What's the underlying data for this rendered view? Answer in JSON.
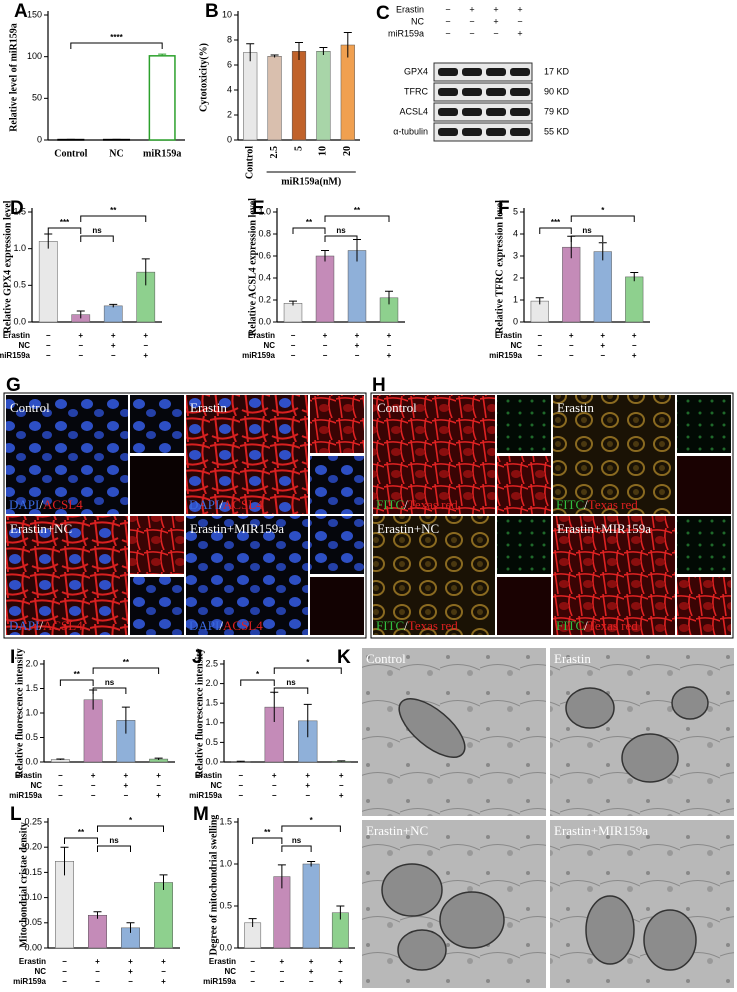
{
  "chart_data": [
    {
      "type": "bar",
      "panel": "A",
      "ylabel": "Relative level of miR159a",
      "categories": [
        "Control",
        "NC",
        "miR159a"
      ],
      "values": [
        0.5,
        0.5,
        101
      ],
      "errors": [
        0.2,
        0.2,
        2
      ],
      "colors": [
        "#000000",
        "#000000",
        "#2ca02c"
      ],
      "outline": true,
      "ylim": [
        0,
        150
      ],
      "yticks": [
        0,
        50,
        100,
        150
      ],
      "significance": [
        "****"
      ]
    },
    {
      "type": "bar",
      "panel": "B",
      "ylabel": "Cytotoxicity(%)",
      "xlabel": "miR159a(nM)",
      "categories": [
        "Control",
        "2.5",
        "5",
        "10",
        "20"
      ],
      "values": [
        7.0,
        6.7,
        7.1,
        7.1,
        7.6
      ],
      "errors": [
        0.7,
        0.1,
        0.7,
        0.3,
        1.0
      ],
      "colors": [
        "#e8e8e8",
        "#d9bfae",
        "#c0622a",
        "#a8d5a8",
        "#f0a050"
      ],
      "ylim": [
        0,
        10
      ],
      "yticks": [
        0,
        2,
        4,
        6,
        8,
        10
      ]
    },
    {
      "type": "bar",
      "panel": "D",
      "ylabel": "Relative GPX4 expression  level",
      "values": [
        1.1,
        0.1,
        0.22,
        0.68
      ],
      "errors": [
        0.1,
        0.05,
        0.02,
        0.18
      ],
      "colors": [
        "#e8e8e8",
        "#c48bb8",
        "#8fb0d9",
        "#8ed08e"
      ],
      "ylim": [
        0,
        1.5
      ],
      "yticks": [
        {
          "value": 0,
          "label": "0.0"
        },
        {
          "value": 0.5,
          "label": "0.5"
        },
        {
          "value": 1,
          "label": "1.0"
        },
        {
          "value": 1.5,
          "label": "1.5"
        }
      ],
      "significance": [
        "***",
        "ns",
        "**"
      ],
      "conditions": [
        {
          "name": "Erastin",
          "signs": [
            "−",
            "+",
            "+",
            "+"
          ]
        },
        {
          "name": "NC",
          "signs": [
            "−",
            "−",
            "+",
            "−"
          ]
        },
        {
          "name": "miR159a",
          "signs": [
            "−",
            "−",
            "−",
            "+"
          ]
        }
      ]
    },
    {
      "type": "bar",
      "panel": "E",
      "ylabel": "Relative ACSL4 expression  level",
      "values": [
        0.17,
        0.6,
        0.65,
        0.22
      ],
      "errors": [
        0.02,
        0.05,
        0.1,
        0.06
      ],
      "colors": [
        "#e8e8e8",
        "#c48bb8",
        "#8fb0d9",
        "#8ed08e"
      ],
      "ylim": [
        0,
        1
      ],
      "yticks": [
        {
          "value": 0,
          "label": "0.0"
        },
        0.2,
        0.4,
        0.6,
        0.8,
        {
          "value": 1,
          "label": "1.0"
        }
      ],
      "significance": [
        "**",
        "ns",
        "**"
      ],
      "conditions": [
        {
          "name": "Erastin",
          "signs": [
            "−",
            "+",
            "+",
            "+"
          ]
        },
        {
          "name": "NC",
          "signs": [
            "−",
            "−",
            "+",
            "−"
          ]
        },
        {
          "name": "miR159a",
          "signs": [
            "−",
            "−",
            "−",
            "+"
          ]
        }
      ]
    },
    {
      "type": "bar",
      "panel": "F",
      "ylabel": "Relative TFRC expression  level",
      "values": [
        0.95,
        3.4,
        3.2,
        2.05
      ],
      "errors": [
        0.15,
        0.5,
        0.4,
        0.2
      ],
      "colors": [
        "#e8e8e8",
        "#c48bb8",
        "#8fb0d9",
        "#8ed08e"
      ],
      "ylim": [
        0,
        5
      ],
      "yticks": [
        0,
        1,
        2,
        3,
        4,
        5
      ],
      "significance": [
        "***",
        "ns",
        "*"
      ],
      "conditions": [
        {
          "name": "Erastin",
          "signs": [
            "−",
            "+",
            "+",
            "+"
          ]
        },
        {
          "name": "NC",
          "signs": [
            "−",
            "−",
            "+",
            "−"
          ]
        },
        {
          "name": "miR159a",
          "signs": [
            "−",
            "−",
            "−",
            "+"
          ]
        }
      ]
    },
    {
      "type": "bar",
      "panel": "I",
      "ylabel": "Relative fluorescence intensity",
      "values": [
        0.05,
        1.27,
        0.85,
        0.06
      ],
      "errors": [
        0.01,
        0.2,
        0.27,
        0.02
      ],
      "colors": [
        "#e8e8e8",
        "#c48bb8",
        "#8fb0d9",
        "#8ed08e"
      ],
      "ylim": [
        0,
        2
      ],
      "yticks": [
        {
          "value": 0,
          "label": "0.0"
        },
        0.5,
        {
          "value": 1,
          "label": "1.0"
        },
        1.5,
        {
          "value": 2,
          "label": "2.0"
        }
      ],
      "significance": [
        "**",
        "ns",
        "**"
      ],
      "conditions": [
        {
          "name": "Erastin",
          "signs": [
            "−",
            "+",
            "+",
            "+"
          ]
        },
        {
          "name": "NC",
          "signs": [
            "−",
            "−",
            "+",
            "−"
          ]
        },
        {
          "name": "miR159a",
          "signs": [
            "−",
            "−",
            "−",
            "+"
          ]
        }
      ]
    },
    {
      "type": "bar",
      "panel": "J",
      "ylabel": "Relative fluorescence intensity",
      "values": [
        0.01,
        1.4,
        1.05,
        0.02
      ],
      "errors": [
        0.01,
        0.38,
        0.42,
        0.01
      ],
      "colors": [
        "#e8e8e8",
        "#c48bb8",
        "#8fb0d9",
        "#8ed08e"
      ],
      "ylim": [
        0,
        2.5
      ],
      "yticks": [
        {
          "value": 0,
          "label": "0.0"
        },
        0.5,
        {
          "value": 1,
          "label": "1.0"
        },
        1.5,
        {
          "value": 2,
          "label": "2.0"
        },
        2.5
      ],
      "significance": [
        "*",
        "ns",
        "*"
      ],
      "conditions": [
        {
          "name": "Erastin",
          "signs": [
            "−",
            "+",
            "+",
            "+"
          ]
        },
        {
          "name": "NC",
          "signs": [
            "−",
            "−",
            "+",
            "−"
          ]
        },
        {
          "name": "miR159a",
          "signs": [
            "−",
            "−",
            "−",
            "+"
          ]
        }
      ]
    },
    {
      "type": "bar",
      "panel": "L",
      "ylabel": "Mitochondrial cristae density",
      "values": [
        0.172,
        0.065,
        0.04,
        0.13
      ],
      "errors": [
        0.028,
        0.007,
        0.01,
        0.015
      ],
      "colors": [
        "#e8e8e8",
        "#c48bb8",
        "#8fb0d9",
        "#8ed08e"
      ],
      "ylim": [
        0,
        0.25
      ],
      "yticks": [
        {
          "value": 0,
          "label": "0.00"
        },
        0.05,
        {
          "value": 0.1,
          "label": "0.10"
        },
        0.15,
        {
          "value": 0.2,
          "label": "0.20"
        },
        0.25
      ],
      "significance": [
        "**",
        "ns",
        "*"
      ],
      "conditions": [
        {
          "name": "Erastin",
          "signs": [
            "−",
            "+",
            "+",
            "+"
          ]
        },
        {
          "name": "NC",
          "signs": [
            "−",
            "−",
            "+",
            "−"
          ]
        },
        {
          "name": "miR159a",
          "signs": [
            "−",
            "−",
            "−",
            "+"
          ]
        }
      ]
    },
    {
      "type": "bar",
      "panel": "M",
      "ylabel": "Degree of mitochondrial swelling",
      "values": [
        0.3,
        0.85,
        1.0,
        0.42
      ],
      "errors": [
        0.05,
        0.14,
        0.03,
        0.08
      ],
      "colors": [
        "#e8e8e8",
        "#c48bb8",
        "#8fb0d9",
        "#8ed08e"
      ],
      "ylim": [
        0,
        1.5
      ],
      "yticks": [
        {
          "value": 0,
          "label": "0.0"
        },
        0.5,
        {
          "value": 1,
          "label": "1.0"
        },
        1.5
      ],
      "significance": [
        "**",
        "ns",
        "*"
      ],
      "conditions": [
        {
          "name": "Erastin",
          "signs": [
            "−",
            "+",
            "+",
            "+"
          ]
        },
        {
          "name": "NC",
          "signs": [
            "−",
            "−",
            "+",
            "−"
          ]
        },
        {
          "name": "miR159a",
          "signs": [
            "−",
            "−",
            "−",
            "+"
          ]
        }
      ]
    }
  ],
  "western_blot": {
    "panel": "C",
    "treatments": [
      {
        "name": "Erastin",
        "signs": [
          "−",
          "+",
          "+",
          "+"
        ]
      },
      {
        "name": "NC",
        "signs": [
          "−",
          "−",
          "+",
          "−"
        ]
      },
      {
        "name": "miR159a",
        "signs": [
          "−",
          "−",
          "−",
          "+"
        ]
      }
    ],
    "proteins": [
      {
        "name": "GPX4",
        "size": "17 KD"
      },
      {
        "name": "TFRC",
        "size": "90 KD"
      },
      {
        "name": "ACSL4",
        "size": "79 KD"
      },
      {
        "name": "α-tubulin",
        "size": "55 KD"
      }
    ]
  },
  "fluorescence": [
    {
      "panel": "G",
      "stain": [
        "DAPI",
        "/",
        "ACSL4"
      ],
      "conditions": [
        "Control",
        "Erastin",
        "Erastin+NC",
        "Erastin+MIR159a"
      ]
    },
    {
      "panel": "H",
      "stain": [
        "FITC",
        "/",
        "Texas red"
      ],
      "conditions": [
        "Control",
        "Erastin",
        "Erastin+NC",
        "Erastin+MIR159a"
      ]
    }
  ],
  "tem": {
    "panel": "K",
    "conditions": [
      "Control",
      "Erastin",
      "Erastin+NC",
      "Erastin+MIR159a"
    ]
  }
}
